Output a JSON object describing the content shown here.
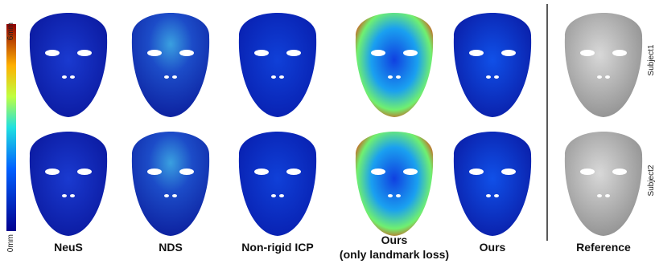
{
  "colorbar": {
    "max_label": "6mm",
    "min_label": "0mm"
  },
  "columns": [
    {
      "label": "NeuS"
    },
    {
      "label": "NDS"
    },
    {
      "label": "Non-rigid ICP"
    },
    {
      "label": "Ours",
      "sublabel": "(only landmark loss)"
    },
    {
      "label": "Ours"
    }
  ],
  "reference": {
    "label": "Reference",
    "rows": [
      "Subject1",
      "Subject2"
    ]
  }
}
